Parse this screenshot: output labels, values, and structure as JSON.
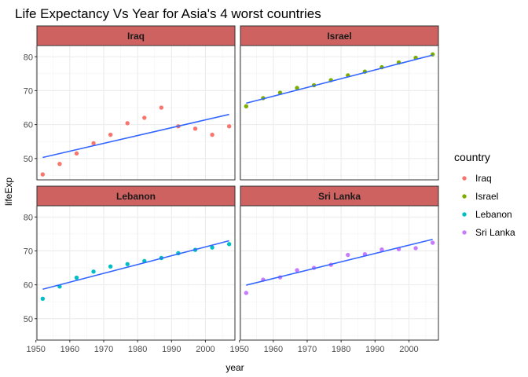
{
  "chart_data": {
    "type": "scatter",
    "title": "Life Expectancy Vs Year for Asia's 4 worst countries",
    "xlabel": "year",
    "ylabel": "lifeExp",
    "xlim": [
      1950.3,
      2008.7
    ],
    "ylim": [
      43.7,
      83.3
    ],
    "x_ticks": [
      1950,
      1960,
      1970,
      1980,
      1990,
      2000
    ],
    "y_ticks": [
      50,
      60,
      70,
      80
    ],
    "grid": true,
    "legend": {
      "title": "country",
      "position": "right"
    },
    "facet_layout": [
      2,
      2
    ],
    "series": [
      {
        "name": "Iraq",
        "color": "#F8766D",
        "x": [
          1952,
          1957,
          1962,
          1967,
          1972,
          1977,
          1982,
          1987,
          1992,
          1997,
          2002,
          2007
        ],
        "values": [
          45.3,
          48.4,
          51.5,
          54.5,
          57.0,
          60.4,
          62.0,
          65.0,
          59.5,
          58.8,
          57.0,
          59.5
        ],
        "trend": [
          50.3,
          63.0
        ]
      },
      {
        "name": "Israel",
        "color": "#7CAE00",
        "x": [
          1952,
          1957,
          1962,
          1967,
          1972,
          1977,
          1982,
          1987,
          1992,
          1997,
          2002,
          2007
        ],
        "values": [
          65.4,
          67.8,
          69.4,
          70.8,
          71.6,
          73.1,
          74.5,
          75.6,
          76.9,
          78.3,
          79.7,
          80.7
        ],
        "trend": [
          66.3,
          80.5
        ]
      },
      {
        "name": "Lebanon",
        "color": "#00BFC4",
        "x": [
          1952,
          1957,
          1962,
          1967,
          1972,
          1977,
          1982,
          1987,
          1992,
          1997,
          2002,
          2007
        ],
        "values": [
          55.9,
          59.5,
          62.1,
          63.9,
          65.4,
          66.1,
          67.0,
          67.9,
          69.3,
          70.3,
          71.0,
          72.0
        ],
        "trend": [
          58.7,
          73.0
        ]
      },
      {
        "name": "Sri Lanka",
        "color": "#C77CFF",
        "x": [
          1952,
          1957,
          1962,
          1967,
          1972,
          1977,
          1982,
          1987,
          1992,
          1997,
          2002,
          2007
        ],
        "values": [
          57.6,
          61.5,
          62.2,
          64.3,
          65.0,
          65.9,
          68.8,
          69.0,
          70.4,
          70.5,
          70.8,
          72.4
        ],
        "trend": [
          59.9,
          73.4
        ]
      }
    ],
    "trend_color": "#3366FF",
    "strip_fill": "#CD6261"
  }
}
